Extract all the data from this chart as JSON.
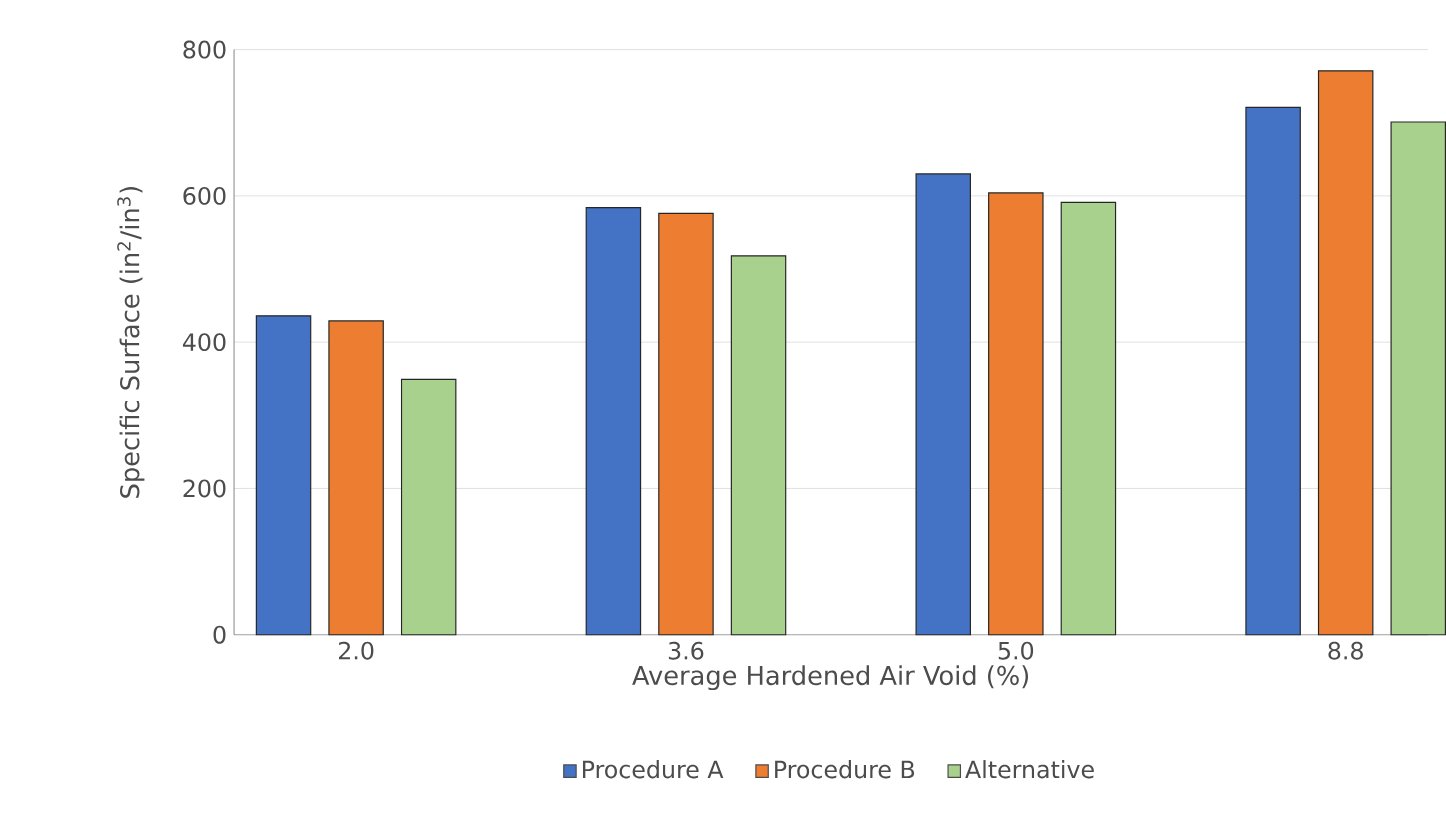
{
  "chart_data": {
    "type": "bar",
    "xlabel": "Average Hardened Air Void (%)",
    "ylabel": "Specific Surface (in$^{2}$/in$^{3}$)",
    "categories": [
      "2.0",
      "3.6",
      "5.0",
      "8.8"
    ],
    "series": [
      {
        "name": "Procedure A",
        "color": "#4472c4",
        "values": [
          436,
          584,
          630,
          721
        ]
      },
      {
        "name": "Procedure B",
        "color": "#ed7d31",
        "values": [
          429,
          576,
          604,
          771
        ]
      },
      {
        "name": "Alternative",
        "color": "#a9d18e",
        "values": [
          349,
          518,
          591,
          701
        ]
      }
    ],
    "ylim": [
      0,
      800
    ],
    "yticks": [
      0,
      200,
      400,
      600,
      800
    ],
    "grid": "y",
    "legend": "bottom"
  }
}
